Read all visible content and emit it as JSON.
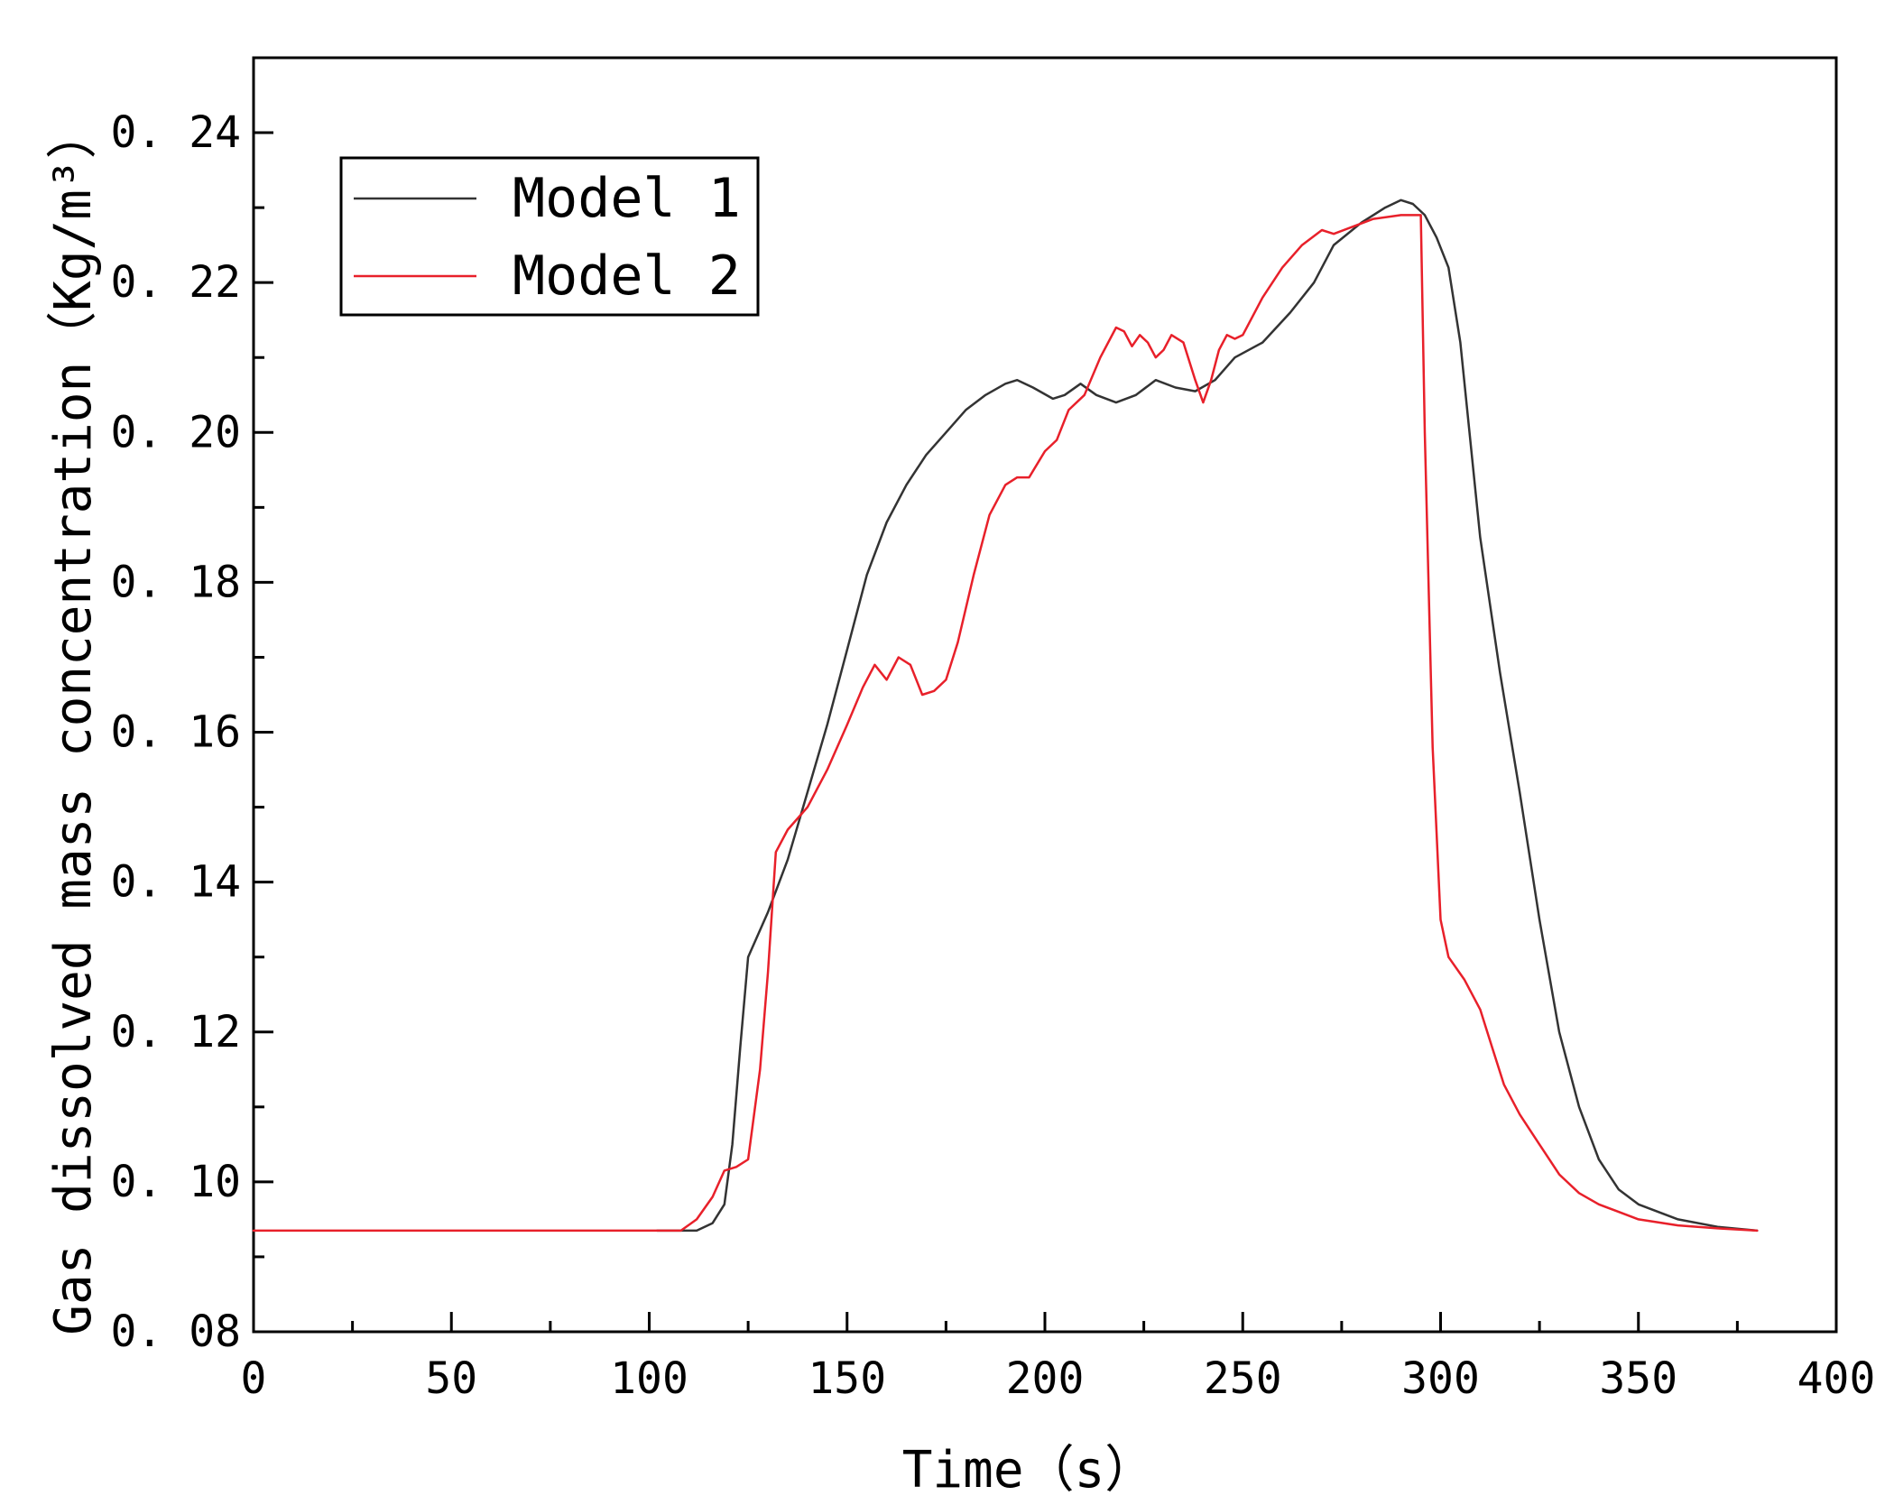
{
  "chart_data": {
    "type": "line",
    "xlabel": "Time（s）",
    "ylabel": "Gas dissolved mass concentration（Kg/m³）",
    "xlim": [
      0,
      400
    ],
    "ylim": [
      0.08,
      0.25
    ],
    "x_ticks": [
      0,
      50,
      100,
      150,
      200,
      250,
      300,
      350,
      400
    ],
    "x_tick_labels": [
      "0",
      "50",
      "100",
      "150",
      "200",
      "250",
      "300",
      "350",
      "400"
    ],
    "y_ticks": [
      0.08,
      0.1,
      0.12,
      0.14,
      0.16,
      0.18,
      0.2,
      0.22,
      0.24
    ],
    "y_tick_labels": [
      "0. 08",
      "0. 10",
      "0. 12",
      "0. 14",
      "0. 16",
      "0. 18",
      "0. 20",
      "0. 22",
      "0. 24"
    ],
    "grid": false,
    "legend_position": "top-left",
    "series": [
      {
        "name": "Model 1",
        "color": "#333333",
        "x": [
          102,
          112,
          116,
          119,
          121,
          123,
          125,
          130,
          135,
          140,
          145,
          150,
          155,
          160,
          165,
          170,
          175,
          180,
          185,
          190,
          193,
          197,
          202,
          205,
          209,
          213,
          218,
          223,
          228,
          233,
          238,
          243,
          248,
          255,
          262,
          268,
          273,
          280,
          286,
          290,
          293,
          296,
          299,
          302,
          305,
          310,
          315,
          320,
          325,
          330,
          335,
          340,
          345,
          350,
          360,
          370,
          380
        ],
        "y": [
          0.0935,
          0.0935,
          0.0945,
          0.097,
          0.105,
          0.118,
          0.13,
          0.136,
          0.143,
          0.152,
          0.161,
          0.171,
          0.181,
          0.188,
          0.193,
          0.197,
          0.2,
          0.203,
          0.205,
          0.2065,
          0.207,
          0.206,
          0.2045,
          0.205,
          0.2065,
          0.205,
          0.204,
          0.205,
          0.207,
          0.206,
          0.2055,
          0.207,
          0.21,
          0.212,
          0.216,
          0.22,
          0.225,
          0.228,
          0.23,
          0.231,
          0.2305,
          0.229,
          0.226,
          0.222,
          0.212,
          0.186,
          0.168,
          0.152,
          0.135,
          0.12,
          0.11,
          0.103,
          0.099,
          0.097,
          0.095,
          0.094,
          0.0935
        ]
      },
      {
        "name": "Model 2",
        "color": "#e8202a",
        "x": [
          0,
          100,
          108,
          112,
          116,
          119,
          122,
          125,
          128,
          130,
          132,
          135,
          140,
          145,
          150,
          154,
          157,
          160,
          163,
          166,
          169,
          172,
          175,
          178,
          182,
          186,
          190,
          193,
          196,
          200,
          203,
          206,
          210,
          214,
          218,
          220,
          222,
          224,
          226,
          228,
          230,
          232,
          235,
          238,
          240,
          242,
          244,
          246,
          248,
          250,
          255,
          260,
          265,
          270,
          273,
          278,
          283,
          290,
          295,
          296,
          298,
          300,
          302,
          306,
          310,
          313,
          316,
          320,
          325,
          330,
          335,
          340,
          345,
          350,
          360,
          370,
          380
        ],
        "y": [
          0.0935,
          0.0935,
          0.0935,
          0.095,
          0.098,
          0.1015,
          0.102,
          0.103,
          0.115,
          0.128,
          0.144,
          0.147,
          0.15,
          0.155,
          0.161,
          0.166,
          0.169,
          0.167,
          0.17,
          0.169,
          0.165,
          0.1655,
          0.167,
          0.172,
          0.181,
          0.189,
          0.193,
          0.194,
          0.194,
          0.1975,
          0.199,
          0.203,
          0.205,
          0.21,
          0.214,
          0.2135,
          0.2115,
          0.213,
          0.212,
          0.21,
          0.211,
          0.213,
          0.212,
          0.207,
          0.204,
          0.207,
          0.211,
          0.213,
          0.2125,
          0.213,
          0.218,
          0.222,
          0.225,
          0.227,
          0.2265,
          0.2275,
          0.2285,
          0.229,
          0.229,
          0.2,
          0.158,
          0.135,
          0.13,
          0.127,
          0.123,
          0.118,
          0.113,
          0.109,
          0.105,
          0.101,
          0.0985,
          0.097,
          0.096,
          0.095,
          0.0942,
          0.0938,
          0.0935
        ]
      }
    ]
  }
}
